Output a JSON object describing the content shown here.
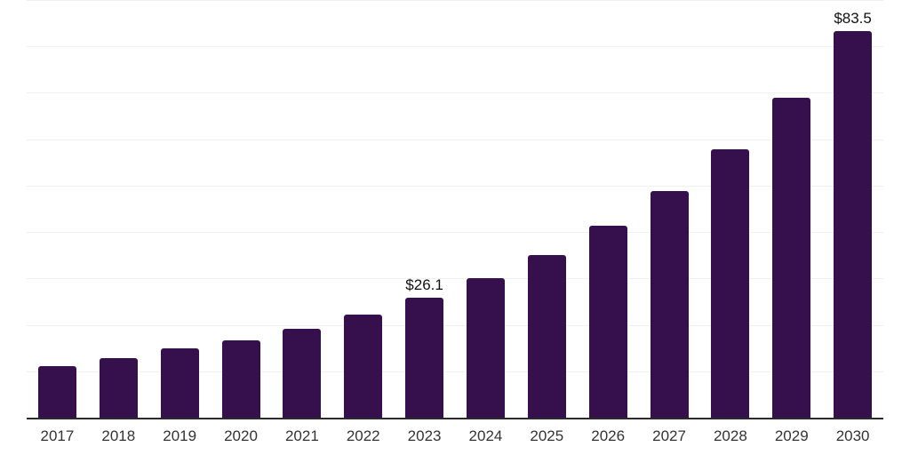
{
  "chart": {
    "background_color": "#ffffff",
    "bar_color": "#36104d",
    "gridline_color": "#f1f1f1",
    "axis_line_color": "#2b2b2b",
    "value_label_color": "#111111",
    "tick_label_color": "#333333"
  },
  "chart_data": {
    "type": "bar",
    "title": "",
    "xlabel": "",
    "ylabel": "",
    "categories": [
      "2017",
      "2018",
      "2019",
      "2020",
      "2021",
      "2022",
      "2023",
      "2024",
      "2025",
      "2026",
      "2027",
      "2028",
      "2029",
      "2030"
    ],
    "values": [
      11.3,
      13.1,
      15.2,
      16.8,
      19.4,
      22.5,
      26.1,
      30.3,
      35.3,
      41.6,
      49.0,
      58.0,
      69.2,
      83.5
    ],
    "data_labels": {
      "2023": "$26.1",
      "2030": "$83.5"
    },
    "ylim": [
      0,
      90
    ],
    "gridline_step": 10,
    "grid": "horizontal",
    "legend": "none",
    "y_axis_tick_labels_visible": false
  }
}
